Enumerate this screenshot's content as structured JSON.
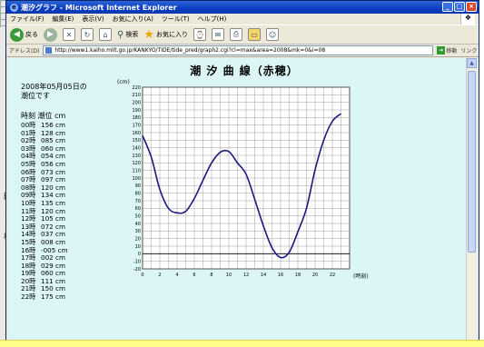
{
  "window": {
    "title": "潮汐グラフ - Microsoft Internet Explorer",
    "controls": {
      "minimize": "_",
      "maximize": "□",
      "close": "×"
    }
  },
  "menubar": [
    "ファイル(F)",
    "編集(E)",
    "表示(V)",
    "お気に入り(A)",
    "ツール(T)",
    "ヘルプ(H)"
  ],
  "toolbar": {
    "back_label": "戻る",
    "search_label": "検索",
    "favorites_label": "お気に入り"
  },
  "addressbar": {
    "label": "アドレス(D)",
    "url": "http://www1.kaiho.mlit.go.jp/KANKYO/TIDE/tide_pred/graph2.cgi?cl=max&area=2008&mk=0&i=08",
    "go_label": "移動",
    "links_label": "リンク"
  },
  "info": {
    "date_line1": "2008年05月05日の",
    "date_line2": "潮位です",
    "col_time": "時刻",
    "col_level": "潮位",
    "col_unit": "cm"
  },
  "tide_table": [
    {
      "time": "00時",
      "level": "156 cm"
    },
    {
      "time": "01時",
      "level": "128 cm"
    },
    {
      "time": "02時",
      "level": "085 cm"
    },
    {
      "time": "03時",
      "level": "060 cm"
    },
    {
      "time": "04時",
      "level": "054 cm"
    },
    {
      "time": "05時",
      "level": "056 cm"
    },
    {
      "time": "06時",
      "level": "073 cm"
    },
    {
      "time": "07時",
      "level": "097 cm"
    },
    {
      "time": "08時",
      "level": "120 cm"
    },
    {
      "time": "09時",
      "level": "134 cm"
    },
    {
      "time": "10時",
      "level": "135 cm"
    },
    {
      "time": "11時",
      "level": "120 cm"
    },
    {
      "time": "12時",
      "level": "105 cm"
    },
    {
      "time": "13時",
      "level": "072 cm"
    },
    {
      "time": "14時",
      "level": "037 cm"
    },
    {
      "time": "15時",
      "level": "008 cm"
    },
    {
      "time": "16時",
      "level": "-005 cm"
    },
    {
      "time": "17時",
      "level": "002 cm"
    },
    {
      "time": "18時",
      "level": "029 cm"
    },
    {
      "time": "19時",
      "level": "060 cm"
    },
    {
      "time": "20時",
      "level": "111 cm"
    },
    {
      "time": "21時",
      "level": "150 cm"
    },
    {
      "time": "22時",
      "level": "175 cm"
    }
  ],
  "chart_data": {
    "type": "line",
    "title": "潮 汐 曲 線（赤穂）",
    "ylabel": "(cm)",
    "xlabel": "",
    "x_unit": "(時刻)",
    "xlim": [
      0,
      24
    ],
    "ylim": [
      -20,
      220
    ],
    "x_ticks": [
      0,
      2,
      4,
      6,
      8,
      10,
      12,
      14,
      16,
      18,
      20,
      22
    ],
    "y_ticks": [
      -20,
      -10,
      0,
      10,
      20,
      30,
      40,
      50,
      60,
      70,
      80,
      90,
      100,
      110,
      120,
      130,
      140,
      150,
      160,
      170,
      180,
      190,
      200,
      210,
      220
    ],
    "grid": true,
    "line_color": "#1a1a80",
    "series": [
      {
        "x": [
          0,
          1,
          2,
          3,
          4,
          5,
          6,
          7,
          8,
          9,
          10,
          11,
          12,
          13,
          14,
          15,
          16,
          17,
          18,
          19,
          20,
          21,
          22,
          23
        ],
        "values": [
          156,
          128,
          85,
          60,
          54,
          56,
          73,
          97,
          120,
          134,
          135,
          120,
          105,
          72,
          37,
          8,
          -5,
          2,
          29,
          60,
          111,
          150,
          175,
          185
        ]
      }
    ]
  }
}
